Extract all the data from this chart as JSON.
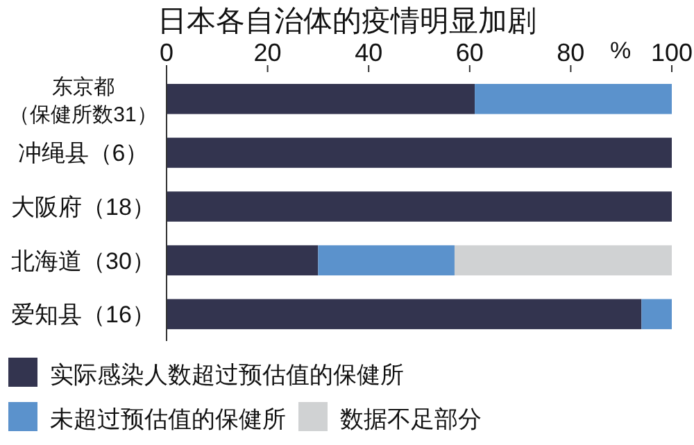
{
  "chart_data": {
    "type": "bar",
    "orientation": "horizontal",
    "stacked": true,
    "title": "日本各自治体的疫情明显加剧",
    "xlabel": "%",
    "categories": [
      "东京都（保健所数31）",
      "冲绳县（6）",
      "大阪府（18）",
      "北海道（30）",
      "爱知县（16）"
    ],
    "series": [
      {
        "name": "实际感染人数超过预估值的保健所",
        "color": "#33344f",
        "values": [
          61,
          100,
          100,
          30,
          94
        ]
      },
      {
        "name": "未超过预估值的保健所",
        "color": "#5b92cc",
        "values": [
          39,
          0,
          0,
          27,
          6
        ]
      },
      {
        "name": "数据不足部分",
        "color": "#d0d2d3",
        "values": [
          0,
          0,
          0,
          43,
          0
        ]
      }
    ],
    "xlim": [
      0,
      100
    ],
    "xticks": [
      0,
      20,
      40,
      60,
      80,
      100
    ],
    "legend": "bottom"
  }
}
